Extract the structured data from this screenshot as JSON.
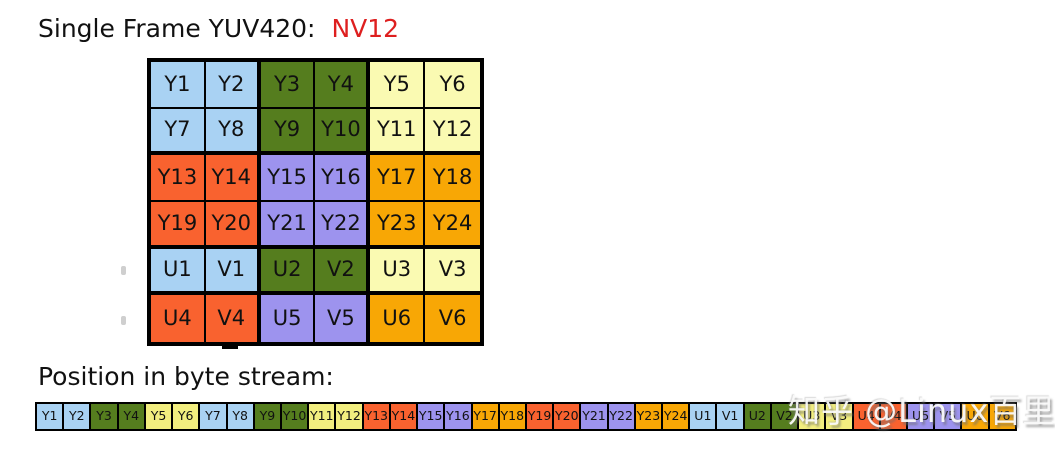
{
  "title": {
    "main": "Single Frame YUV420:",
    "highlight": "NV12"
  },
  "colors": {
    "blue": "#A9D2F3",
    "green": "#557D1E",
    "paleYellow": "#FAFAB2",
    "yellow": "#F2EE7F",
    "red": "#F9622F",
    "purple": "#9D93EE",
    "orange": "#F8A705",
    "highlight": "#DE1F1F",
    "border": "#000000"
  },
  "grid": {
    "rows": [
      [
        {
          "label": "Y1",
          "color": "blue"
        },
        {
          "label": "Y2",
          "color": "blue"
        },
        {
          "label": "Y3",
          "color": "green"
        },
        {
          "label": "Y4",
          "color": "green"
        },
        {
          "label": "Y5",
          "color": "paleYellow"
        },
        {
          "label": "Y6",
          "color": "paleYellow"
        }
      ],
      [
        {
          "label": "Y7",
          "color": "blue"
        },
        {
          "label": "Y8",
          "color": "blue"
        },
        {
          "label": "Y9",
          "color": "green"
        },
        {
          "label": "Y10",
          "color": "green"
        },
        {
          "label": "Y11",
          "color": "paleYellow"
        },
        {
          "label": "Y12",
          "color": "paleYellow"
        }
      ],
      [
        {
          "label": "Y13",
          "color": "red"
        },
        {
          "label": "Y14",
          "color": "red"
        },
        {
          "label": "Y15",
          "color": "purple"
        },
        {
          "label": "Y16",
          "color": "purple"
        },
        {
          "label": "Y17",
          "color": "orange"
        },
        {
          "label": "Y18",
          "color": "orange"
        }
      ],
      [
        {
          "label": "Y19",
          "color": "red"
        },
        {
          "label": "Y20",
          "color": "red"
        },
        {
          "label": "Y21",
          "color": "purple"
        },
        {
          "label": "Y22",
          "color": "purple"
        },
        {
          "label": "Y23",
          "color": "orange"
        },
        {
          "label": "Y24",
          "color": "orange"
        }
      ],
      [
        {
          "label": "U1",
          "color": "blue"
        },
        {
          "label": "V1",
          "color": "blue"
        },
        {
          "label": "U2",
          "color": "green"
        },
        {
          "label": "V2",
          "color": "green"
        },
        {
          "label": "U3",
          "color": "paleYellow"
        },
        {
          "label": "V3",
          "color": "paleYellow"
        }
      ],
      [
        {
          "label": "U4",
          "color": "red"
        },
        {
          "label": "V4",
          "color": "red"
        },
        {
          "label": "U5",
          "color": "purple"
        },
        {
          "label": "V5",
          "color": "purple"
        },
        {
          "label": "U6",
          "color": "orange"
        },
        {
          "label": "V6",
          "color": "orange"
        }
      ]
    ]
  },
  "stream": {
    "label": "Position in byte stream:",
    "cells": [
      {
        "label": "Y1",
        "color": "blue"
      },
      {
        "label": "Y2",
        "color": "blue"
      },
      {
        "label": "Y3",
        "color": "green"
      },
      {
        "label": "Y4",
        "color": "green"
      },
      {
        "label": "Y5",
        "color": "yellow"
      },
      {
        "label": "Y6",
        "color": "yellow"
      },
      {
        "label": "Y7",
        "color": "blue"
      },
      {
        "label": "Y8",
        "color": "blue"
      },
      {
        "label": "Y9",
        "color": "green"
      },
      {
        "label": "Y10",
        "color": "green"
      },
      {
        "label": "Y11",
        "color": "yellow"
      },
      {
        "label": "Y12",
        "color": "yellow"
      },
      {
        "label": "Y13",
        "color": "red"
      },
      {
        "label": "Y14",
        "color": "red"
      },
      {
        "label": "Y15",
        "color": "purple"
      },
      {
        "label": "Y16",
        "color": "purple"
      },
      {
        "label": "Y17",
        "color": "orange"
      },
      {
        "label": "Y18",
        "color": "orange"
      },
      {
        "label": "Y19",
        "color": "red"
      },
      {
        "label": "Y20",
        "color": "red"
      },
      {
        "label": "Y21",
        "color": "purple"
      },
      {
        "label": "Y22",
        "color": "purple"
      },
      {
        "label": "Y23",
        "color": "orange"
      },
      {
        "label": "Y24",
        "color": "orange"
      },
      {
        "label": "U1",
        "color": "blue"
      },
      {
        "label": "V1",
        "color": "blue"
      },
      {
        "label": "U2",
        "color": "green"
      },
      {
        "label": "V2",
        "color": "green"
      },
      {
        "label": "U3",
        "color": "yellow"
      },
      {
        "label": "V3",
        "color": "yellow"
      },
      {
        "label": "U4",
        "color": "red"
      },
      {
        "label": "V4",
        "color": "red"
      },
      {
        "label": "U5",
        "color": "purple"
      },
      {
        "label": "V5",
        "color": "purple"
      },
      {
        "label": "U6",
        "color": "orange"
      },
      {
        "label": "V6",
        "color": "orange"
      }
    ]
  },
  "watermark": "知乎 @Linux百里"
}
